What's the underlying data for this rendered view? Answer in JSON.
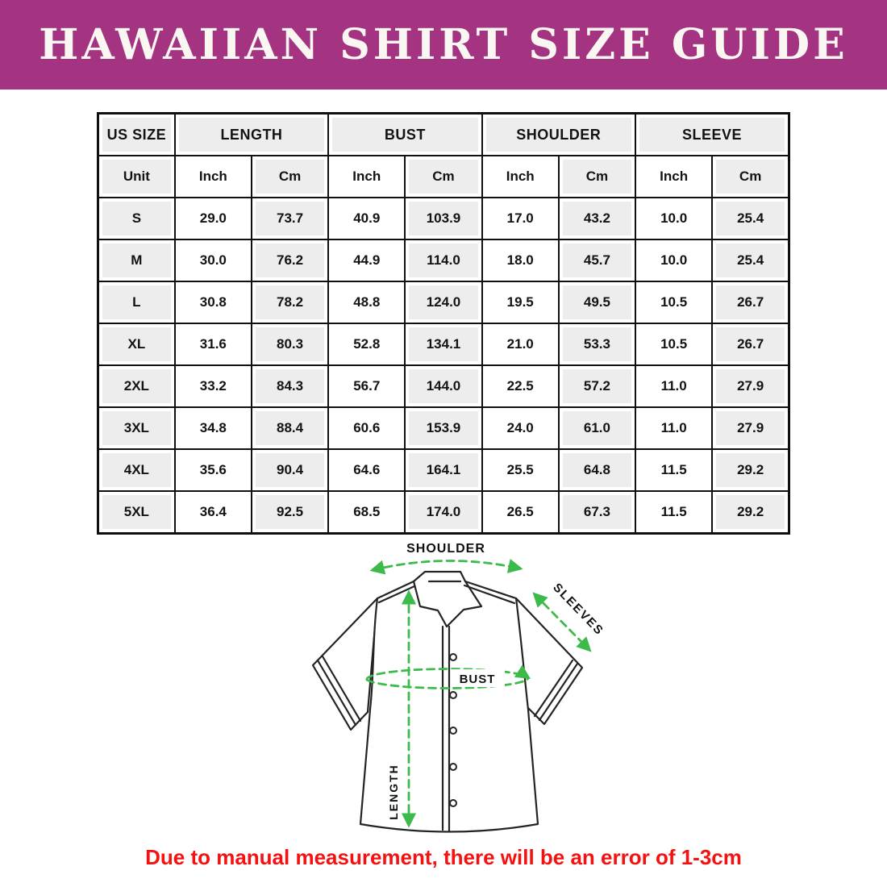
{
  "banner": {
    "title": "HAWAIIAN SHIRT SIZE GUIDE",
    "bg_color": "#a43382",
    "text_color": "#faf7f2"
  },
  "chart_data": {
    "type": "table",
    "title": "HAWAIIAN SHIRT SIZE GUIDE",
    "column_groups": [
      {
        "label": "US SIZE",
        "span": 1
      },
      {
        "label": "LENGTH",
        "span": 2
      },
      {
        "label": "BUST",
        "span": 2
      },
      {
        "label": "SHOULDER",
        "span": 2
      },
      {
        "label": "SLEEVE",
        "span": 2
      }
    ],
    "unit_row": [
      "Unit",
      "Inch",
      "Cm",
      "Inch",
      "Cm",
      "Inch",
      "Cm",
      "Inch",
      "Cm"
    ],
    "rows": [
      {
        "size": "S",
        "values": [
          "29.0",
          "73.7",
          "40.9",
          "103.9",
          "17.0",
          "43.2",
          "10.0",
          "25.4"
        ]
      },
      {
        "size": "M",
        "values": [
          "30.0",
          "76.2",
          "44.9",
          "114.0",
          "18.0",
          "45.7",
          "10.0",
          "25.4"
        ]
      },
      {
        "size": "L",
        "values": [
          "30.8",
          "78.2",
          "48.8",
          "124.0",
          "19.5",
          "49.5",
          "10.5",
          "26.7"
        ]
      },
      {
        "size": "XL",
        "values": [
          "31.6",
          "80.3",
          "52.8",
          "134.1",
          "21.0",
          "53.3",
          "10.5",
          "26.7"
        ]
      },
      {
        "size": "2XL",
        "values": [
          "33.2",
          "84.3",
          "56.7",
          "144.0",
          "22.5",
          "57.2",
          "11.0",
          "27.9"
        ]
      },
      {
        "size": "3XL",
        "values": [
          "34.8",
          "88.4",
          "60.6",
          "153.9",
          "24.0",
          "61.0",
          "11.0",
          "27.9"
        ]
      },
      {
        "size": "4XL",
        "values": [
          "35.6",
          "90.4",
          "64.6",
          "164.1",
          "25.5",
          "64.8",
          "11.5",
          "29.2"
        ]
      },
      {
        "size": "5XL",
        "values": [
          "36.4",
          "92.5",
          "68.5",
          "174.0",
          "26.5",
          "67.3",
          "11.5",
          "29.2"
        ]
      }
    ]
  },
  "diagram": {
    "shirt_icon": "hawaiian-shirt-outline",
    "labels": {
      "shoulder": "SHOULDER",
      "sleeves": "SLEEVES",
      "bust": "BUST",
      "length": "LENGTH"
    },
    "arrow_color": "#3cbb4b",
    "outline_color": "#242424"
  },
  "footer": {
    "note": "Due to manual measurement, there will be an error of 1-3cm",
    "color": "#f61111"
  }
}
